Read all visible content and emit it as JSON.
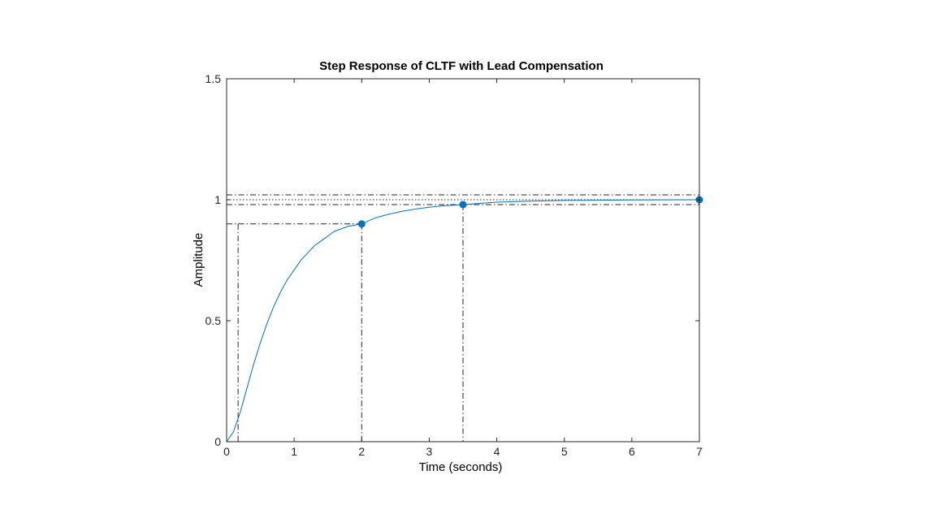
{
  "chart_data": {
    "type": "line",
    "title": "Step Response of CLTF with Lead Compensation",
    "xlabel": "Time (seconds)",
    "ylabel": "Amplitude",
    "xlim": [
      0,
      7
    ],
    "ylim": [
      0,
      1.5
    ],
    "xticks": [
      "0",
      "1",
      "2",
      "3",
      "4",
      "5",
      "6",
      "7"
    ],
    "yticks": [
      "0",
      "0.5",
      "1",
      "1.5"
    ],
    "grid": false,
    "series": [
      {
        "color": "#0072BD",
        "x": [
          0,
          0.1,
          0.2,
          0.3,
          0.4,
          0.5,
          0.6,
          0.7,
          0.8,
          0.9,
          1.0,
          1.1,
          1.2,
          1.3,
          1.4,
          1.5,
          1.6,
          1.7,
          1.8,
          1.9,
          2.0,
          2.2,
          2.4,
          2.6,
          2.8,
          3.0,
          3.2,
          3.5,
          4.0,
          4.5,
          5.0,
          5.5,
          6.0,
          6.5,
          7.0
        ],
        "y": [
          0,
          0.04,
          0.12,
          0.22,
          0.32,
          0.41,
          0.49,
          0.56,
          0.62,
          0.67,
          0.71,
          0.75,
          0.78,
          0.81,
          0.83,
          0.85,
          0.87,
          0.88,
          0.89,
          0.895,
          0.9,
          0.925,
          0.94,
          0.952,
          0.962,
          0.969,
          0.975,
          0.98,
          0.99,
          0.994,
          0.997,
          0.998,
          0.999,
          0.9995,
          1.0
        ]
      }
    ],
    "markers": [
      {
        "x": 2.0,
        "y": 0.9
      },
      {
        "x": 3.5,
        "y": 0.98
      },
      {
        "x": 7.0,
        "y": 1.0
      }
    ],
    "reference_lines": {
      "rise_start_x": 0.17,
      "rise_level_low": 0.1,
      "rise_level_high": 0.9,
      "rise_end_x": 2.0,
      "settling_time_x": 3.5,
      "settling_upper": 1.02,
      "settling_lower": 0.98,
      "steady_state": 1.0
    }
  }
}
